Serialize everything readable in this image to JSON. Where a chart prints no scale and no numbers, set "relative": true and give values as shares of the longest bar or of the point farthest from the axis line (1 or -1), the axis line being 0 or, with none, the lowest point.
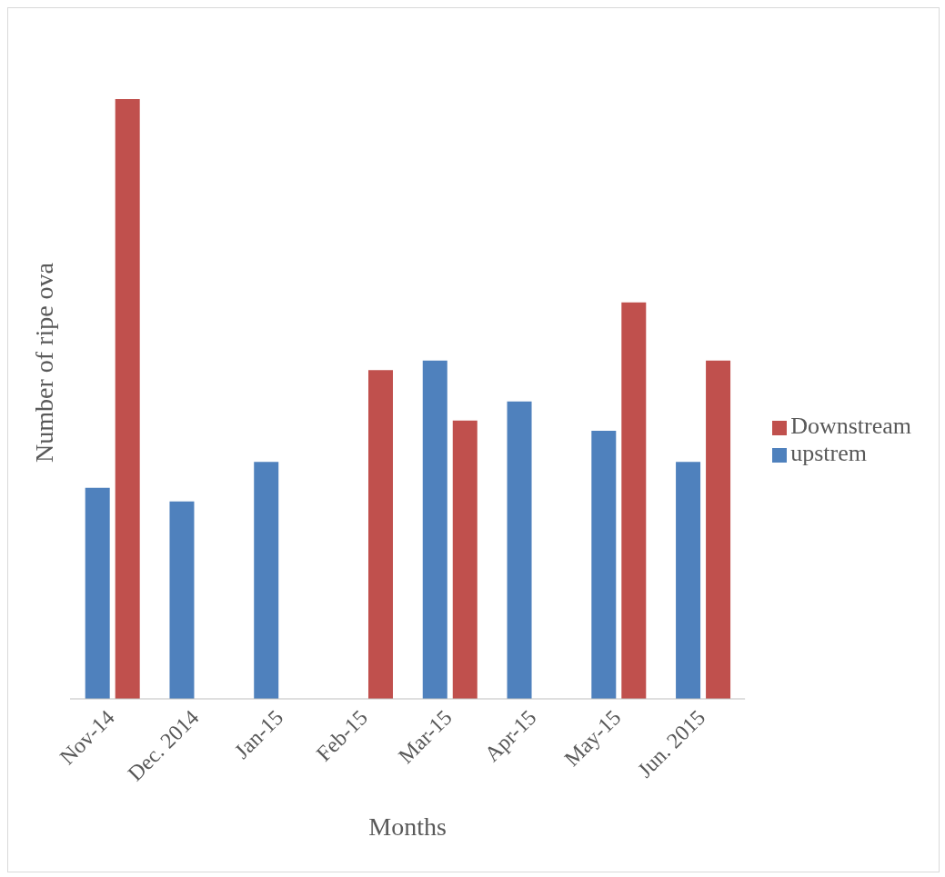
{
  "chart_data": {
    "type": "bar",
    "relative": true,
    "xlabel": "Months",
    "ylabel": "Number of  ripe ova",
    "categories": [
      "Nov-14",
      "Dec. 2014",
      "Jan-15",
      "Feb-15",
      "Mar-15",
      "Apr-15",
      "May-15",
      "Jun. 2015"
    ],
    "series": [
      {
        "name": "upstrem",
        "color": "#4f81bd",
        "values": [
          0.352,
          0.329,
          0.395,
          null,
          0.564,
          0.496,
          0.447,
          0.395
        ]
      },
      {
        "name": "Downstream",
        "color": "#c0504d",
        "values": [
          1,
          null,
          null,
          0.548,
          0.464,
          null,
          0.661,
          0.564
        ]
      }
    ],
    "legend": "right",
    "grid": false
  }
}
